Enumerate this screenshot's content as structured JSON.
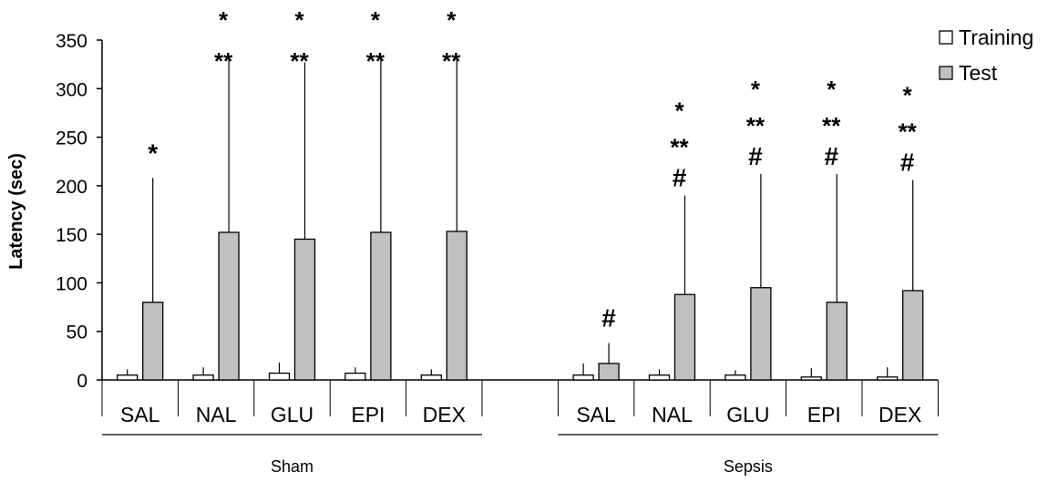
{
  "chart_data": {
    "type": "bar",
    "ylabel": "Latency (sec)",
    "ylim": [
      0,
      350
    ],
    "yticks": [
      0,
      50,
      100,
      150,
      200,
      250,
      300,
      350
    ],
    "legend_position": "top-right",
    "series": [
      {
        "name": "Training",
        "color": "#ffffff"
      },
      {
        "name": "Test",
        "color": "#c0c0c0"
      }
    ],
    "groups": [
      {
        "label": "Sham",
        "categories": [
          {
            "label": "SAL",
            "training": 5,
            "training_err": 6,
            "test": 80,
            "test_err": 128,
            "markers": [
              "*"
            ]
          },
          {
            "label": "NAL",
            "training": 5,
            "training_err": 8,
            "test": 152,
            "test_err": 182,
            "markers": [
              "*",
              "**"
            ]
          },
          {
            "label": "GLU",
            "training": 7,
            "training_err": 11,
            "test": 145,
            "test_err": 182,
            "markers": [
              "*",
              "**"
            ]
          },
          {
            "label": "EPI",
            "training": 7,
            "training_err": 6,
            "test": 152,
            "test_err": 182,
            "markers": [
              "*",
              "**"
            ]
          },
          {
            "label": "DEX",
            "training": 5,
            "training_err": 6,
            "test": 153,
            "test_err": 180,
            "markers": [
              "*",
              "**"
            ]
          }
        ]
      },
      {
        "label": "Sepsis",
        "categories": [
          {
            "label": "SAL",
            "training": 5,
            "training_err": 12,
            "test": 17,
            "test_err": 21,
            "markers": [
              "#"
            ]
          },
          {
            "label": "NAL",
            "training": 5,
            "training_err": 6,
            "test": 88,
            "test_err": 102,
            "markers": [
              "*",
              "**",
              "#"
            ]
          },
          {
            "label": "GLU",
            "training": 5,
            "training_err": 5,
            "test": 95,
            "test_err": 117,
            "markers": [
              "*",
              "**",
              "#"
            ]
          },
          {
            "label": "EPI",
            "training": 3,
            "training_err": 9,
            "test": 80,
            "test_err": 132,
            "markers": [
              "*",
              "**",
              "#"
            ]
          },
          {
            "label": "DEX",
            "training": 3,
            "training_err": 10,
            "test": 92,
            "test_err": 114,
            "markers": [
              "*",
              "**",
              "#"
            ]
          }
        ]
      }
    ]
  }
}
